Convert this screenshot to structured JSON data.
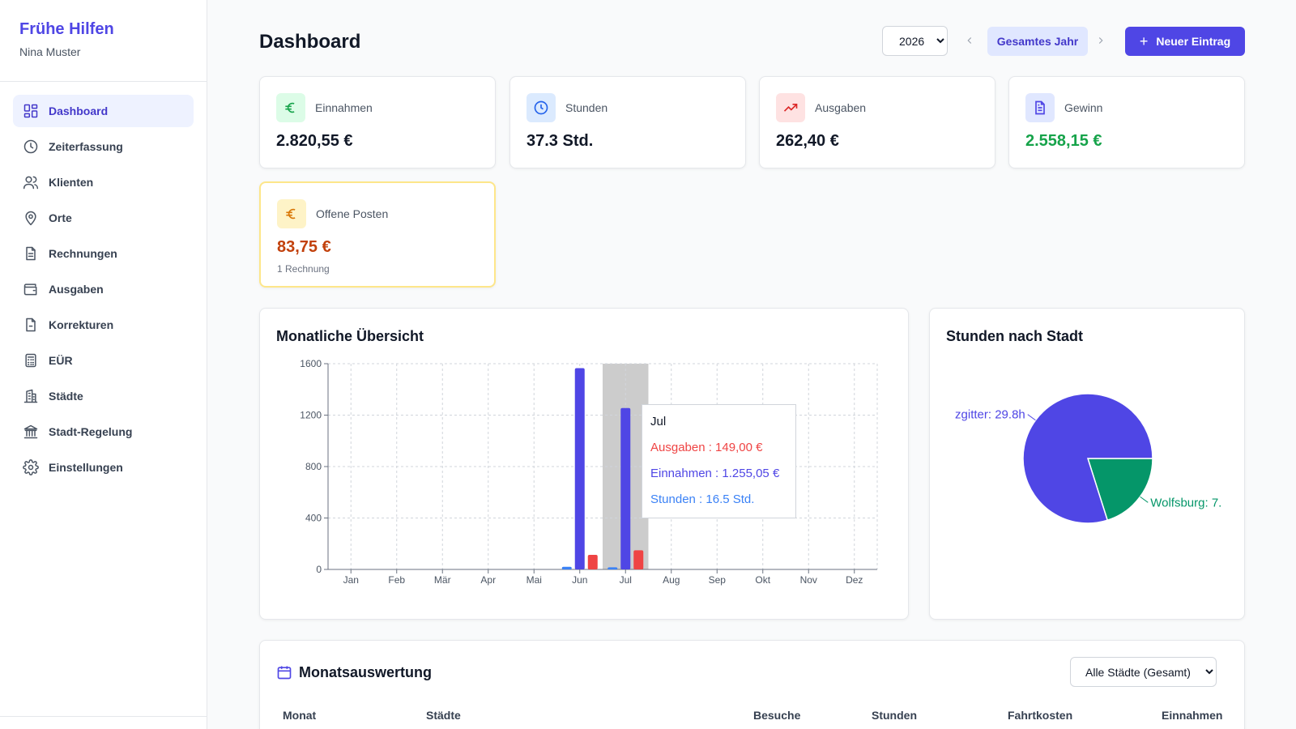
{
  "sidebar": {
    "brand": "Frühe Hilfen",
    "user": "Nina Muster",
    "items": [
      {
        "label": "Dashboard",
        "icon": "grid-icon",
        "active": true
      },
      {
        "label": "Zeiterfassung",
        "icon": "clock-icon"
      },
      {
        "label": "Klienten",
        "icon": "users-icon"
      },
      {
        "label": "Orte",
        "icon": "map-pin-icon"
      },
      {
        "label": "Rechnungen",
        "icon": "file-text-icon"
      },
      {
        "label": "Ausgaben",
        "icon": "wallet-icon"
      },
      {
        "label": "Korrekturen",
        "icon": "file-icon"
      },
      {
        "label": "EÜR",
        "icon": "calculator-icon"
      },
      {
        "label": "Städte",
        "icon": "building-icon"
      },
      {
        "label": "Stadt-Regelung",
        "icon": "landmark-icon"
      },
      {
        "label": "Einstellungen",
        "icon": "gear-icon"
      }
    ]
  },
  "header": {
    "title": "Dashboard",
    "year": "2026",
    "period": "Gesamtes Jahr",
    "new_entry": "Neuer Eintrag"
  },
  "stats": {
    "income": {
      "label": "Einnahmen",
      "value": "2.820,55 €",
      "icon": "euro-icon",
      "color": "#16a34a"
    },
    "hours": {
      "label": "Stunden",
      "value": "37.3 Std.",
      "icon": "clock-icon",
      "color": "#2563eb"
    },
    "expenses": {
      "label": "Ausgaben",
      "value": "262,40 €",
      "icon": "trending-up-icon",
      "color": "#dc2626"
    },
    "profit": {
      "label": "Gewinn",
      "value": "2.558,15 €",
      "icon": "file-text-icon",
      "color": "#16a34a"
    },
    "open": {
      "label": "Offene Posten",
      "value": "83,75 €",
      "sub": "1 Rechnung",
      "icon": "euro-icon",
      "color": "#c2410c"
    }
  },
  "monthly_chart": {
    "title": "Monatliche Übersicht",
    "tooltip": {
      "month": "Jul",
      "expenses": "Ausgaben : 149,00 €",
      "income": "Einnahmen : 1.255,05 €",
      "hours": "Stunden : 16.5 Std."
    }
  },
  "pie_chart": {
    "title": "Stunden nach Stadt",
    "label_left": "zgitter: 29.8h",
    "label_right": "Wolfsburg: 7."
  },
  "chart_data": [
    {
      "type": "bar",
      "title": "Monatliche Übersicht",
      "categories": [
        "Jan",
        "Feb",
        "Mär",
        "Apr",
        "Mai",
        "Jun",
        "Jul",
        "Aug",
        "Sep",
        "Okt",
        "Nov",
        "Dez"
      ],
      "series": [
        {
          "name": "Stunden",
          "color": "#3b82f6",
          "values": [
            0,
            0,
            0,
            0,
            0,
            20.8,
            16.5,
            0,
            0,
            0,
            0,
            0
          ]
        },
        {
          "name": "Einnahmen",
          "color": "#4f46e5",
          "values": [
            0,
            0,
            0,
            0,
            0,
            1565.5,
            1255.05,
            0,
            0,
            0,
            0,
            0
          ]
        },
        {
          "name": "Ausgaben",
          "color": "#ef4444",
          "values": [
            0,
            0,
            0,
            0,
            0,
            113.4,
            149,
            0,
            0,
            0,
            0,
            0
          ]
        }
      ],
      "yticks": [
        0,
        400,
        800,
        1200,
        1600
      ],
      "ylim": [
        0,
        1600
      ],
      "grid": true
    },
    {
      "type": "pie",
      "title": "Stunden nach Stadt",
      "slices": [
        {
          "label": "zgitter: 29.8h",
          "value": 29.8,
          "color": "#4f46e5"
        },
        {
          "label": "Wolfsburg: 7.",
          "value": 7.5,
          "color": "#059669"
        }
      ]
    }
  ],
  "month_table": {
    "title": "Monatsauswertung",
    "city_filter": "Alle Städte (Gesamt)",
    "columns": [
      "Monat",
      "Städte",
      "Besuche",
      "Stunden",
      "Fahrtkosten",
      "Einnahmen"
    ]
  }
}
